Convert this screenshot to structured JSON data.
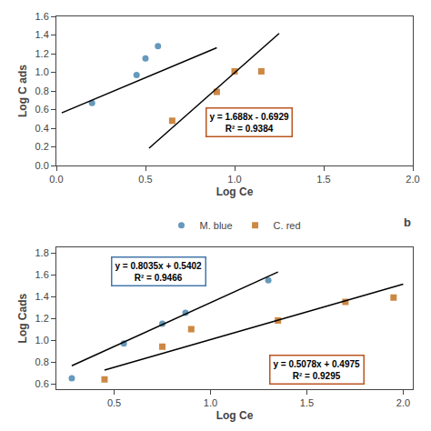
{
  "chart_data": [
    {
      "type": "scatter",
      "xlabel": "Log Ce",
      "ylabel": "Log C ads",
      "xlim": [
        0,
        2
      ],
      "ylim": [
        0,
        1.6
      ],
      "xticks": [
        {
          "value": 0,
          "label": "0.0"
        },
        0.5,
        {
          "value": 1,
          "label": "1.0"
        },
        1.5,
        {
          "value": 2,
          "label": "2.0"
        }
      ],
      "yticks": [
        {
          "value": 0,
          "label": "0.0"
        },
        0.2,
        0.4,
        0.6,
        0.8,
        {
          "value": 1,
          "label": "1.0"
        },
        1.2,
        1.4,
        1.6
      ],
      "grid": false,
      "legend": "bottom",
      "series": [
        {
          "name": "M. blue",
          "type": "scatter",
          "marker": "circle",
          "color": "#6699bb",
          "x": [
            0.2,
            0.45,
            0.5,
            0.57
          ],
          "values": [
            0.67,
            0.97,
            1.15,
            1.28
          ]
        },
        {
          "name": "C. red",
          "type": "scatter",
          "marker": "square",
          "color": "#cc8844",
          "x": [
            0.65,
            0.9,
            1.0,
            1.15
          ],
          "values": [
            0.48,
            0.79,
            1.01,
            1.01
          ]
        },
        {
          "type": "line",
          "line_style": "solid",
          "color": "black",
          "x": [
            0.03,
            0.9
          ],
          "values": [
            0.564305,
            1.26335
          ]
        },
        {
          "type": "line",
          "line_style": "solid",
          "color": "black",
          "x": [
            0.52,
            1.25
          ],
          "values": [
            0.18486,
            1.4171
          ]
        }
      ],
      "annotations": [
        {
          "text": "y = 1.688x - 0.6929\nR² = 0.9384",
          "x": 1.08,
          "y": 0.46,
          "color": "#bb5522"
        }
      ]
    },
    {
      "type": "scatter",
      "title": "b",
      "xlabel": "Log Ce",
      "ylabel": "Log Cads",
      "xlim": [
        0.2,
        2.05
      ],
      "ylim": [
        0.55,
        1.85
      ],
      "xticks": [
        0.5,
        {
          "value": 1,
          "label": "1.0"
        },
        1.5,
        {
          "value": 2,
          "label": "2.0"
        }
      ],
      "yticks": [
        0.6,
        0.8,
        {
          "value": 1,
          "label": "1.0"
        },
        1.2,
        1.4,
        1.6,
        1.8
      ],
      "grid": false,
      "series": [
        {
          "name": "M. blue",
          "type": "scatter",
          "marker": "circle",
          "color": "#6699bb",
          "x": [
            0.28,
            0.55,
            0.75,
            0.87,
            1.3
          ],
          "values": [
            0.65,
            0.97,
            1.15,
            1.25,
            1.55
          ]
        },
        {
          "name": "C. red",
          "type": "scatter",
          "marker": "square",
          "color": "#cc8844",
          "x": [
            0.45,
            0.75,
            0.9,
            1.35,
            1.7,
            1.95
          ],
          "values": [
            0.64,
            0.94,
            1.1,
            1.18,
            1.35,
            1.39
          ]
        },
        {
          "type": "line",
          "line_style": "solid",
          "color": "black",
          "x": [
            0.28,
            1.35
          ],
          "values": [
            0.76518,
            1.624925
          ]
        },
        {
          "type": "line",
          "line_style": "solid",
          "color": "black",
          "x": [
            0.45,
            2.0
          ],
          "values": [
            0.72601,
            1.5131
          ]
        }
      ],
      "annotations": [
        {
          "text": "y = 0.8035x + 0.5402\nR² = 0.9466",
          "x": 0.73,
          "y": 1.63,
          "color": "#4477aa"
        },
        {
          "text": "y = 0.5078x + 0.4975\nR² = 0.9295",
          "x": 1.55,
          "y": 0.73,
          "color": "#bb5522"
        }
      ]
    }
  ]
}
